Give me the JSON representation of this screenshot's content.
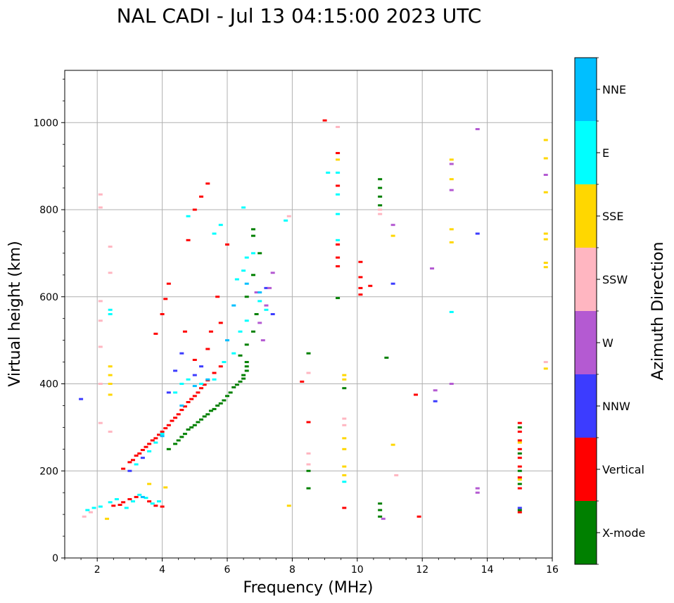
{
  "chart_data": {
    "type": "scatter",
    "title": "NAL CADI - Jul 13 04:15:00 2023 UTC",
    "xlabel": "Frequency (MHz)",
    "ylabel": "Virtual height (km)",
    "xlim": [
      1,
      16
    ],
    "ylim": [
      0,
      1120
    ],
    "xticks": [
      2,
      4,
      6,
      8,
      10,
      12,
      14,
      16
    ],
    "xtick_labels": [
      "2",
      "4",
      "6",
      "8",
      "10",
      "12",
      "14",
      "16"
    ],
    "yticks": [
      0,
      200,
      400,
      600,
      800,
      1000
    ],
    "ytick_labels": [
      "0",
      "200",
      "400",
      "600",
      "800",
      "1000"
    ],
    "grid": true,
    "colorbar": {
      "label": "Azimuth Direction",
      "categories": [
        "X-mode",
        "Vertical",
        "NNW",
        "W",
        "SSW",
        "SSE",
        "E",
        "NNE"
      ],
      "colors": [
        "#008000",
        "#ff0000",
        "#3c3cff",
        "#b45ad2",
        "#ffb6c1",
        "#ffd700",
        "#00ffff",
        "#00bfff"
      ]
    },
    "series": [
      {
        "name": "X-mode",
        "points": [
          [
            4.2,
            250
          ],
          [
            4.4,
            262
          ],
          [
            4.6,
            278
          ],
          [
            4.8,
            295
          ],
          [
            5.0,
            305
          ],
          [
            5.2,
            318
          ],
          [
            5.4,
            330
          ],
          [
            5.6,
            342
          ],
          [
            5.8,
            355
          ],
          [
            6.0,
            372
          ],
          [
            6.2,
            392
          ],
          [
            6.4,
            405
          ],
          [
            6.5,
            420
          ],
          [
            6.6,
            440
          ],
          [
            6.4,
            465
          ],
          [
            6.6,
            490
          ],
          [
            6.8,
            520
          ],
          [
            6.9,
            560
          ],
          [
            6.6,
            600
          ],
          [
            6.8,
            650
          ],
          [
            7.0,
            700
          ],
          [
            6.8,
            740
          ],
          [
            6.8,
            755
          ],
          [
            4.5,
            270
          ],
          [
            4.7,
            285
          ],
          [
            4.9,
            300
          ],
          [
            5.1,
            312
          ],
          [
            5.3,
            325
          ],
          [
            5.5,
            338
          ],
          [
            5.7,
            350
          ],
          [
            5.9,
            362
          ],
          [
            6.1,
            380
          ],
          [
            6.3,
            398
          ],
          [
            6.5,
            412
          ],
          [
            6.6,
            430
          ],
          [
            6.6,
            450
          ],
          [
            8.5,
            470
          ],
          [
            8.5,
            200
          ],
          [
            8.5,
            160
          ],
          [
            9.4,
            597
          ],
          [
            9.6,
            390
          ],
          [
            10.7,
            810
          ],
          [
            10.7,
            830
          ],
          [
            10.7,
            850
          ],
          [
            10.7,
            870
          ],
          [
            10.7,
            125
          ],
          [
            10.7,
            110
          ],
          [
            10.7,
            95
          ],
          [
            10.9,
            460
          ],
          [
            15.0,
            300
          ],
          [
            15.0,
            240
          ],
          [
            15.0,
            200
          ],
          [
            15.0,
            170
          ],
          [
            15.0,
            110
          ]
        ]
      },
      {
        "name": "Vertical",
        "points": [
          [
            2.5,
            120
          ],
          [
            2.7,
            122
          ],
          [
            2.8,
            128
          ],
          [
            3.0,
            135
          ],
          [
            3.2,
            140
          ],
          [
            3.6,
            130
          ],
          [
            3.8,
            120
          ],
          [
            4.0,
            118
          ],
          [
            2.8,
            205
          ],
          [
            3.0,
            220
          ],
          [
            3.2,
            235
          ],
          [
            3.4,
            248
          ],
          [
            3.6,
            262
          ],
          [
            3.8,
            275
          ],
          [
            4.0,
            290
          ],
          [
            4.2,
            305
          ],
          [
            4.4,
            322
          ],
          [
            4.6,
            340
          ],
          [
            4.8,
            358
          ],
          [
            5.0,
            372
          ],
          [
            5.2,
            390
          ],
          [
            5.4,
            408
          ],
          [
            5.6,
            425
          ],
          [
            5.8,
            440
          ],
          [
            3.1,
            225
          ],
          [
            3.3,
            240
          ],
          [
            3.5,
            255
          ],
          [
            3.7,
            270
          ],
          [
            3.9,
            283
          ],
          [
            4.1,
            298
          ],
          [
            4.3,
            315
          ],
          [
            4.5,
            330
          ],
          [
            4.7,
            348
          ],
          [
            4.9,
            365
          ],
          [
            5.1,
            380
          ],
          [
            5.3,
            398
          ],
          [
            4.0,
            560
          ],
          [
            4.1,
            595
          ],
          [
            4.2,
            630
          ],
          [
            4.7,
            520
          ],
          [
            5.0,
            455
          ],
          [
            5.4,
            480
          ],
          [
            5.5,
            520
          ],
          [
            5.8,
            540
          ],
          [
            5.7,
            600
          ],
          [
            5.0,
            800
          ],
          [
            5.2,
            830
          ],
          [
            5.4,
            860
          ],
          [
            4.8,
            730
          ],
          [
            6.0,
            720
          ],
          [
            3.8,
            515
          ],
          [
            9.0,
            1005
          ],
          [
            9.4,
            930
          ],
          [
            9.4,
            855
          ],
          [
            9.4,
            720
          ],
          [
            9.4,
            690
          ],
          [
            9.4,
            670
          ],
          [
            9.6,
            115
          ],
          [
            10.1,
            680
          ],
          [
            10.1,
            645
          ],
          [
            10.1,
            620
          ],
          [
            10.1,
            605
          ],
          [
            10.4,
            625
          ],
          [
            11.8,
            375
          ],
          [
            11.9,
            95
          ],
          [
            8.3,
            405
          ],
          [
            8.5,
            312
          ],
          [
            15.0,
            310
          ],
          [
            15.0,
            290
          ],
          [
            15.0,
            270
          ],
          [
            15.0,
            250
          ],
          [
            15.0,
            230
          ],
          [
            15.0,
            210
          ],
          [
            15.0,
            185
          ],
          [
            15.0,
            160
          ],
          [
            15.0,
            105
          ]
        ]
      },
      {
        "name": "NNW",
        "points": [
          [
            1.5,
            365
          ],
          [
            4.2,
            380
          ],
          [
            4.4,
            430
          ],
          [
            4.6,
            470
          ],
          [
            5.0,
            420
          ],
          [
            5.2,
            440
          ],
          [
            3.0,
            200
          ],
          [
            3.4,
            230
          ],
          [
            7.4,
            560
          ],
          [
            7.2,
            620
          ],
          [
            11.1,
            630
          ],
          [
            12.4,
            360
          ],
          [
            13.7,
            745
          ],
          [
            15.0,
            115
          ]
        ]
      },
      {
        "name": "W",
        "points": [
          [
            7.0,
            540
          ],
          [
            7.2,
            580
          ],
          [
            7.3,
            620
          ],
          [
            7.4,
            655
          ],
          [
            6.9,
            610
          ],
          [
            7.1,
            500
          ],
          [
            11.1,
            765
          ],
          [
            12.3,
            665
          ],
          [
            12.4,
            385
          ],
          [
            12.9,
            905
          ],
          [
            12.9,
            845
          ],
          [
            12.9,
            400
          ],
          [
            13.7,
            985
          ],
          [
            13.7,
            160
          ],
          [
            13.7,
            150
          ],
          [
            15.8,
            880
          ],
          [
            10.8,
            90
          ]
        ]
      },
      {
        "name": "SSW",
        "points": [
          [
            1.6,
            95
          ],
          [
            1.8,
            105
          ],
          [
            2.1,
            835
          ],
          [
            2.1,
            805
          ],
          [
            2.4,
            715
          ],
          [
            2.4,
            655
          ],
          [
            2.1,
            590
          ],
          [
            2.1,
            545
          ],
          [
            2.1,
            485
          ],
          [
            2.1,
            400
          ],
          [
            2.1,
            310
          ],
          [
            2.4,
            290
          ],
          [
            8.5,
            425
          ],
          [
            8.5,
            240
          ],
          [
            8.5,
            215
          ],
          [
            9.6,
            320
          ],
          [
            9.6,
            305
          ],
          [
            10.7,
            800
          ],
          [
            10.7,
            790
          ],
          [
            11.2,
            190
          ],
          [
            15.8,
            450
          ],
          [
            9.4,
            990
          ],
          [
            7.9,
            785
          ]
        ]
      },
      {
        "name": "SSE",
        "points": [
          [
            2.4,
            375
          ],
          [
            2.4,
            400
          ],
          [
            2.4,
            420
          ],
          [
            2.4,
            440
          ],
          [
            2.3,
            90
          ],
          [
            3.6,
            170
          ],
          [
            4.1,
            162
          ],
          [
            7.9,
            120
          ],
          [
            9.6,
            420
          ],
          [
            9.6,
            410
          ],
          [
            9.6,
            275
          ],
          [
            9.6,
            250
          ],
          [
            9.6,
            210
          ],
          [
            9.6,
            190
          ],
          [
            9.4,
            915
          ],
          [
            11.1,
            740
          ],
          [
            11.1,
            260
          ],
          [
            12.9,
            915
          ],
          [
            12.9,
            870
          ],
          [
            12.9,
            755
          ],
          [
            12.9,
            725
          ],
          [
            15.8,
            960
          ],
          [
            15.8,
            918
          ],
          [
            15.8,
            840
          ],
          [
            15.8,
            745
          ],
          [
            15.8,
            732
          ],
          [
            15.8,
            678
          ],
          [
            15.8,
            668
          ],
          [
            15.8,
            435
          ],
          [
            15.0,
            265
          ],
          [
            15.0,
            180
          ]
        ]
      },
      {
        "name": "E",
        "points": [
          [
            1.7,
            110
          ],
          [
            1.9,
            115
          ],
          [
            2.1,
            118
          ],
          [
            2.4,
            128
          ],
          [
            2.6,
            135
          ],
          [
            2.9,
            115
          ],
          [
            3.1,
            130
          ],
          [
            3.3,
            145
          ],
          [
            3.5,
            138
          ],
          [
            3.7,
            125
          ],
          [
            3.9,
            130
          ],
          [
            3.2,
            215
          ],
          [
            3.6,
            245
          ],
          [
            3.8,
            265
          ],
          [
            4.0,
            285
          ],
          [
            4.4,
            380
          ],
          [
            4.6,
            400
          ],
          [
            4.8,
            410
          ],
          [
            5.2,
            400
          ],
          [
            5.6,
            410
          ],
          [
            5.9,
            450
          ],
          [
            6.2,
            470
          ],
          [
            6.4,
            520
          ],
          [
            6.6,
            545
          ],
          [
            6.3,
            640
          ],
          [
            6.5,
            660
          ],
          [
            6.6,
            690
          ],
          [
            6.8,
            700
          ],
          [
            7.0,
            590
          ],
          [
            7.2,
            570
          ],
          [
            5.6,
            745
          ],
          [
            5.8,
            765
          ],
          [
            4.8,
            785
          ],
          [
            6.5,
            805
          ],
          [
            2.4,
            570
          ],
          [
            2.4,
            560
          ],
          [
            9.1,
            885
          ],
          [
            9.4,
            885
          ],
          [
            9.4,
            835
          ],
          [
            9.4,
            790
          ],
          [
            9.4,
            730
          ],
          [
            12.9,
            565
          ],
          [
            9.6,
            175
          ],
          [
            7.8,
            775
          ]
        ]
      },
      {
        "name": "NNE",
        "points": [
          [
            3.4,
            140
          ],
          [
            4.0,
            280
          ],
          [
            4.6,
            350
          ],
          [
            5.0,
            395
          ],
          [
            5.4,
            410
          ],
          [
            6.0,
            500
          ],
          [
            6.2,
            580
          ],
          [
            6.6,
            630
          ],
          [
            7.0,
            610
          ]
        ]
      }
    ]
  }
}
